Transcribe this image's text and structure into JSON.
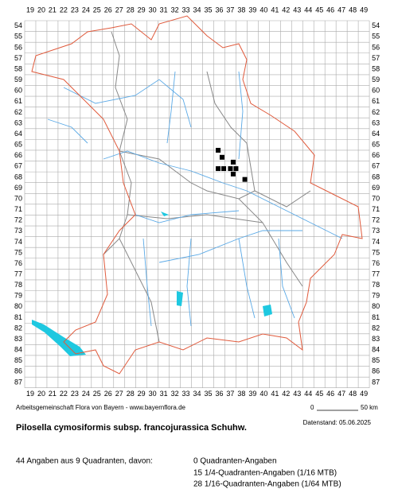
{
  "map": {
    "columns": [
      19,
      20,
      21,
      22,
      23,
      24,
      25,
      26,
      27,
      28,
      29,
      30,
      31,
      32,
      33,
      34,
      35,
      36,
      37,
      38,
      39,
      40,
      41,
      42,
      43,
      44,
      45,
      46,
      47,
      48,
      49
    ],
    "rows": [
      54,
      55,
      56,
      57,
      58,
      59,
      60,
      61,
      62,
      63,
      64,
      65,
      66,
      67,
      68,
      69,
      70,
      71,
      72,
      73,
      74,
      75,
      76,
      77,
      78,
      79,
      80,
      81,
      82,
      83,
      84,
      85,
      86,
      87
    ],
    "records": [
      {
        "x": 35.9,
        "y": 65.5
      },
      {
        "x": 36.25,
        "y": 66.15
      },
      {
        "x": 37.25,
        "y": 66.6
      },
      {
        "x": 35.9,
        "y": 67.2
      },
      {
        "x": 36.4,
        "y": 67.2
      },
      {
        "x": 37.0,
        "y": 67.2
      },
      {
        "x": 37.5,
        "y": 67.2
      },
      {
        "x": 37.25,
        "y": 67.7
      },
      {
        "x": 38.3,
        "y": 68.2
      }
    ]
  },
  "footer": {
    "credit": "Arbeitsgemeinschaft Flora von Bayern - www.bayernflora.de",
    "scale_start": "0",
    "scale_end": "50 km",
    "date": "Datenstand: 05.06.2025",
    "title": "Pilosella cymosiformis subsp. francojurassica Schuhw.",
    "summary": "44 Angaben aus 9 Quadranten, davon:",
    "counts": [
      "0 Quadranten-Angaben",
      "15 1/4-Quadranten-Angaben (1/16 MTB)",
      "28 1/16-Quadranten-Angaben (1/64 MTB)"
    ]
  }
}
